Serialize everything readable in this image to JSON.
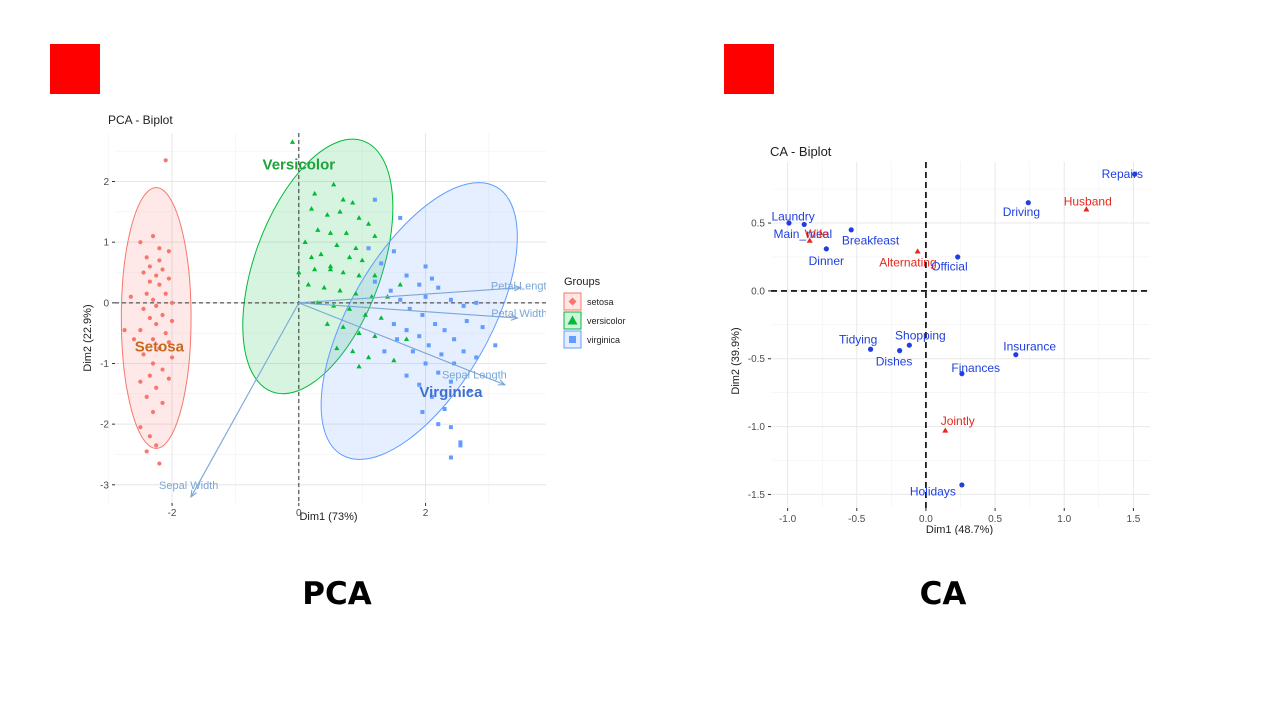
{
  "colors": {
    "setosa": "#f8766d",
    "versicolor": "#00ba38",
    "virginica": "#619cff",
    "arrow": "#7aa6d6",
    "ca_rows": "#1f3fe0",
    "ca_cols": "#e8261c",
    "red_marker": "#ff0000"
  },
  "captions": {
    "left": "PCA",
    "right": "CA"
  },
  "chart_data": [
    {
      "type": "scatter",
      "title": "PCA - Biplot",
      "xlabel": "Dim1 (73%)",
      "ylabel": "Dim2 (22.9%)",
      "xlim": [
        -2.9,
        3.9
      ],
      "ylim": [
        -3.3,
        2.8
      ],
      "xticks": [
        -2,
        0,
        2
      ],
      "yticks": [
        -3,
        -2,
        -1,
        0,
        1,
        2
      ],
      "grid": true,
      "legend": {
        "title": "Groups",
        "placement": "right",
        "entries": [
          "setosa",
          "versicolor",
          "virginica"
        ]
      },
      "group_labels": [
        {
          "text": "Setosa",
          "group": "setosa",
          "x": -2.2,
          "y": -0.8
        },
        {
          "text": "Versicolor",
          "group": "versicolor",
          "x": 0.0,
          "y": 2.2
        },
        {
          "text": "Virginica",
          "group": "virginica",
          "x": 2.4,
          "y": -1.55
        }
      ],
      "ellipses": [
        {
          "group": "setosa",
          "cx": -2.25,
          "cy": -0.25,
          "rx": 0.55,
          "ry": 2.15,
          "angle": 0
        },
        {
          "group": "versicolor",
          "cx": 0.3,
          "cy": 0.6,
          "rx": 1.0,
          "ry": 2.2,
          "angle": 20
        },
        {
          "group": "virginica",
          "cx": 1.9,
          "cy": -0.3,
          "rx": 1.1,
          "ry": 2.55,
          "angle": 30
        }
      ],
      "arrows": [
        {
          "label": "Petal Length",
          "x": 3.5,
          "y": 0.25
        },
        {
          "label": "Petal Width",
          "x": 3.45,
          "y": -0.25
        },
        {
          "label": "Sepal Length",
          "x": 3.25,
          "y": -1.35
        },
        {
          "label": "Sepal Width",
          "x": -1.7,
          "y": -3.2
        }
      ],
      "series": [
        {
          "name": "setosa",
          "points": [
            [
              -2.1,
              2.35
            ],
            [
              -2.5,
              1.0
            ],
            [
              -2.3,
              1.1
            ],
            [
              -2.2,
              0.9
            ],
            [
              -2.05,
              0.85
            ],
            [
              -2.4,
              0.75
            ],
            [
              -2.2,
              0.7
            ],
            [
              -2.35,
              0.6
            ],
            [
              -2.15,
              0.55
            ],
            [
              -2.45,
              0.5
            ],
            [
              -2.25,
              0.45
            ],
            [
              -2.05,
              0.4
            ],
            [
              -2.35,
              0.35
            ],
            [
              -2.2,
              0.3
            ],
            [
              -2.4,
              0.15
            ],
            [
              -2.1,
              0.15
            ],
            [
              -2.3,
              0.05
            ],
            [
              -2.0,
              0.0
            ],
            [
              -2.25,
              -0.05
            ],
            [
              -2.45,
              -0.1
            ],
            [
              -2.15,
              -0.2
            ],
            [
              -2.35,
              -0.25
            ],
            [
              -2.0,
              -0.3
            ],
            [
              -2.25,
              -0.35
            ],
            [
              -2.5,
              -0.45
            ],
            [
              -2.1,
              -0.5
            ],
            [
              -2.3,
              -0.6
            ],
            [
              -2.6,
              -0.6
            ],
            [
              -2.05,
              -0.65
            ],
            [
              -2.2,
              -0.75
            ],
            [
              -2.45,
              -0.85
            ],
            [
              -2.0,
              -0.9
            ],
            [
              -2.3,
              -1.0
            ],
            [
              -2.15,
              -1.1
            ],
            [
              -2.35,
              -1.2
            ],
            [
              -2.05,
              -1.25
            ],
            [
              -2.5,
              -1.3
            ],
            [
              -2.25,
              -1.4
            ],
            [
              -2.4,
              -1.55
            ],
            [
              -2.15,
              -1.65
            ],
            [
              -2.3,
              -1.8
            ],
            [
              -2.5,
              -2.05
            ],
            [
              -2.35,
              -2.2
            ],
            [
              -2.25,
              -2.35
            ],
            [
              -2.4,
              -2.45
            ],
            [
              -2.2,
              -2.65
            ],
            [
              -2.75,
              -0.45
            ],
            [
              -2.65,
              0.1
            ]
          ]
        },
        {
          "name": "versicolor",
          "points": [
            [
              -0.1,
              2.65
            ],
            [
              0.25,
              1.8
            ],
            [
              0.55,
              1.95
            ],
            [
              0.7,
              1.7
            ],
            [
              0.85,
              1.65
            ],
            [
              0.2,
              1.55
            ],
            [
              0.45,
              1.45
            ],
            [
              0.65,
              1.5
            ],
            [
              0.95,
              1.4
            ],
            [
              1.1,
              1.3
            ],
            [
              0.3,
              1.2
            ],
            [
              0.5,
              1.15
            ],
            [
              0.75,
              1.15
            ],
            [
              1.2,
              1.1
            ],
            [
              0.1,
              1.0
            ],
            [
              0.6,
              0.95
            ],
            [
              0.9,
              0.9
            ],
            [
              0.35,
              0.8
            ],
            [
              0.8,
              0.75
            ],
            [
              1.0,
              0.7
            ],
            [
              0.0,
              0.5
            ],
            [
              0.25,
              0.55
            ],
            [
              0.5,
              0.55
            ],
            [
              0.7,
              0.5
            ],
            [
              0.95,
              0.45
            ],
            [
              1.2,
              0.45
            ],
            [
              0.15,
              0.3
            ],
            [
              0.4,
              0.25
            ],
            [
              0.65,
              0.2
            ],
            [
              0.9,
              0.15
            ],
            [
              1.15,
              0.1
            ],
            [
              1.4,
              0.1
            ],
            [
              0.3,
              0.0
            ],
            [
              0.55,
              -0.05
            ],
            [
              0.8,
              -0.1
            ],
            [
              1.05,
              -0.2
            ],
            [
              1.3,
              -0.25
            ],
            [
              0.45,
              -0.35
            ],
            [
              0.7,
              -0.4
            ],
            [
              0.95,
              -0.5
            ],
            [
              1.2,
              -0.55
            ],
            [
              0.6,
              -0.75
            ],
            [
              0.85,
              -0.8
            ],
            [
              1.1,
              -0.9
            ],
            [
              1.5,
              -0.95
            ],
            [
              0.95,
              -1.05
            ],
            [
              1.7,
              -0.6
            ],
            [
              1.6,
              0.3
            ],
            [
              0.5,
              0.6
            ],
            [
              0.2,
              0.75
            ]
          ]
        },
        {
          "name": "virginica",
          "points": [
            [
              1.2,
              1.7
            ],
            [
              1.6,
              1.4
            ],
            [
              2.0,
              0.6
            ],
            [
              2.0,
              0.1
            ],
            [
              2.2,
              0.25
            ],
            [
              1.1,
              0.9
            ],
            [
              1.3,
              0.65
            ],
            [
              1.5,
              0.85
            ],
            [
              1.7,
              0.45
            ],
            [
              1.9,
              0.3
            ],
            [
              2.1,
              0.4
            ],
            [
              2.4,
              0.05
            ],
            [
              2.6,
              -0.05
            ],
            [
              2.9,
              -0.4
            ],
            [
              3.1,
              -0.7
            ],
            [
              1.2,
              0.35
            ],
            [
              1.45,
              0.2
            ],
            [
              1.6,
              0.05
            ],
            [
              1.75,
              -0.1
            ],
            [
              1.95,
              -0.2
            ],
            [
              2.15,
              -0.35
            ],
            [
              2.3,
              -0.45
            ],
            [
              2.45,
              -0.6
            ],
            [
              2.6,
              -0.8
            ],
            [
              2.8,
              -0.9
            ],
            [
              1.5,
              -0.35
            ],
            [
              1.7,
              -0.45
            ],
            [
              1.9,
              -0.55
            ],
            [
              2.05,
              -0.7
            ],
            [
              2.25,
              -0.85
            ],
            [
              2.45,
              -1.0
            ],
            [
              1.8,
              -0.8
            ],
            [
              2.0,
              -1.0
            ],
            [
              2.2,
              -1.15
            ],
            [
              2.4,
              -1.3
            ],
            [
              1.7,
              -1.2
            ],
            [
              1.9,
              -1.35
            ],
            [
              2.1,
              -1.55
            ],
            [
              2.3,
              -1.75
            ],
            [
              2.2,
              -2.0
            ],
            [
              2.4,
              -2.05
            ],
            [
              2.55,
              -2.3
            ],
            [
              2.4,
              -2.55
            ],
            [
              2.55,
              -2.35
            ],
            [
              1.95,
              -1.8
            ],
            [
              2.7,
              -1.45
            ],
            [
              1.35,
              -0.8
            ],
            [
              1.55,
              -0.6
            ],
            [
              2.65,
              -0.3
            ],
            [
              2.8,
              0.0
            ]
          ]
        }
      ]
    },
    {
      "type": "scatter",
      "title": "CA - Biplot",
      "xlabel": "Dim1 (48.7%)",
      "ylabel": "Dim2 (39.9%)",
      "xlim": [
        -1.12,
        1.62
      ],
      "ylim": [
        -1.6,
        0.95
      ],
      "xticks": [
        -1.0,
        -0.5,
        0.0,
        0.5,
        1.0,
        1.5
      ],
      "xtick_labels": [
        "-1.0",
        "-0.5",
        "0.0",
        "0.5",
        "1.0",
        "1.5"
      ],
      "yticks": [
        -1.5,
        -1.0,
        -0.5,
        0.0,
        0.5
      ],
      "ytick_labels": [
        "-1.5",
        "-1.0",
        "-0.5",
        "0.0",
        "0.5"
      ],
      "grid": true,
      "rows": [
        {
          "label": "Laundry",
          "x": -0.99,
          "y": 0.5,
          "lx": -0.96,
          "ly": 0.55
        },
        {
          "label": "Main_meal",
          "x": -0.88,
          "y": 0.49,
          "lx": -0.89,
          "ly": 0.42
        },
        {
          "label": "Dinner",
          "x": -0.72,
          "y": 0.31,
          "lx": -0.72,
          "ly": 0.22
        },
        {
          "label": "Breakfeast",
          "x": -0.54,
          "y": 0.45,
          "lx": -0.4,
          "ly": 0.37
        },
        {
          "label": "Tidying",
          "x": -0.4,
          "y": -0.43,
          "lx": -0.49,
          "ly": -0.36
        },
        {
          "label": "Dishes",
          "x": -0.19,
          "y": -0.44,
          "lx": -0.23,
          "ly": -0.52
        },
        {
          "label": "Shopping",
          "x": -0.12,
          "y": -0.4,
          "lx": -0.04,
          "ly": -0.33
        },
        {
          "label": "Official",
          "x": 0.23,
          "y": 0.25,
          "lx": 0.17,
          "ly": 0.18
        },
        {
          "label": "Driving",
          "x": 0.74,
          "y": 0.65,
          "lx": 0.69,
          "ly": 0.58
        },
        {
          "label": "Finances",
          "x": 0.26,
          "y": -0.61,
          "lx": 0.36,
          "ly": -0.57
        },
        {
          "label": "Insurance",
          "x": 0.65,
          "y": -0.47,
          "lx": 0.75,
          "ly": -0.41
        },
        {
          "label": "Repairs",
          "x": 1.51,
          "y": 0.86,
          "lx": 1.42,
          "ly": 0.86
        },
        {
          "label": "Holidays",
          "x": 0.26,
          "y": -1.43,
          "lx": 0.05,
          "ly": -1.48
        }
      ],
      "cols": [
        {
          "label": "Wife",
          "x": -0.84,
          "y": 0.37,
          "lx": -0.79,
          "ly": 0.42
        },
        {
          "label": "Alternating",
          "x": -0.06,
          "y": 0.29,
          "lx": -0.13,
          "ly": 0.21
        },
        {
          "label": "Husband",
          "x": 1.16,
          "y": 0.6,
          "lx": 1.17,
          "ly": 0.66
        },
        {
          "label": "Jointly",
          "x": 0.14,
          "y": -1.03,
          "lx": 0.23,
          "ly": -0.96
        }
      ]
    }
  ]
}
